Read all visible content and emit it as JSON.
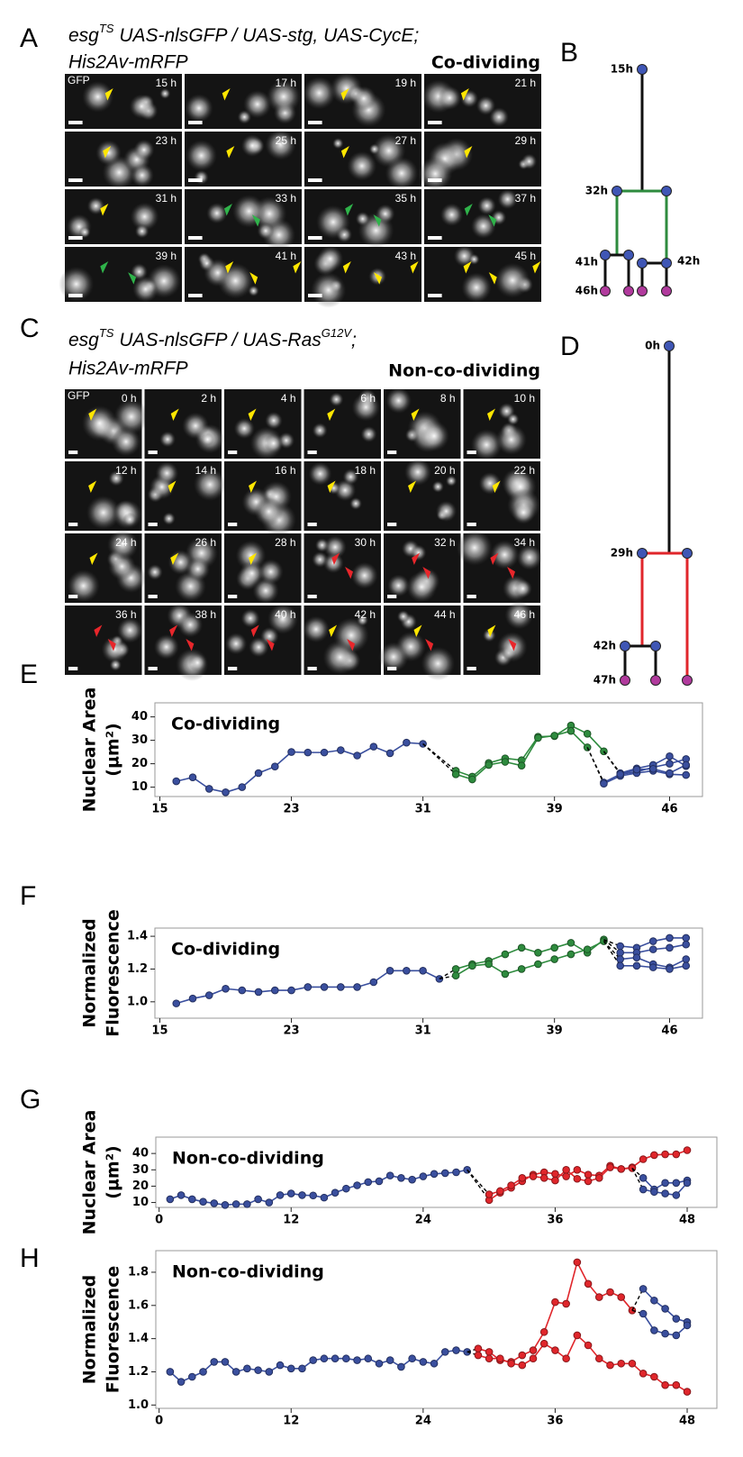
{
  "panel_labels": {
    "a": "A",
    "b": "B",
    "c": "C",
    "d": "D",
    "e": "E",
    "f": "F",
    "g": "G",
    "h": "H"
  },
  "panel_a": {
    "genotype": [
      "esg",
      "TS",
      " UAS-nlsGFP / UAS-stg, UAS-CycE;"
    ],
    "genotype_line2": "His2Av-mRFP",
    "condition": "Co-dividing",
    "channel": "GFP",
    "times": [
      "15 h",
      "17 h",
      "19 h",
      "21 h",
      "23 h",
      "25 h",
      "27 h",
      "29 h",
      "31 h",
      "33 h",
      "35 h",
      "37 h",
      "39 h",
      "41 h",
      "43 h",
      "45 h"
    ]
  },
  "panel_b": {
    "labels": {
      "root": "15h",
      "split": "32h",
      "left": "41h",
      "right": "42h",
      "end": "46h"
    }
  },
  "panel_c": {
    "genotype": [
      "esg",
      "TS",
      " UAS-nlsGFP / UAS-Ras",
      "G12V",
      ";"
    ],
    "genotype_line2": "His2Av-mRFP",
    "condition": "Non-co-dividing",
    "channel": "GFP",
    "times": [
      "0 h",
      "2 h",
      "4 h",
      "6 h",
      "8 h",
      "10 h",
      "12 h",
      "14 h",
      "16 h",
      "18 h",
      "20 h",
      "22 h",
      "24 h",
      "26 h",
      "28 h",
      "30 h",
      "32 h",
      "34 h",
      "36 h",
      "38 h",
      "40 h",
      "42 h",
      "44 h",
      "46 h"
    ]
  },
  "panel_d": {
    "labels": {
      "root": "0h",
      "split": "29h",
      "left": "42h",
      "end": "47h"
    }
  },
  "chart_data": [
    {
      "type": "line",
      "title": "Co-dividing",
      "y_label": [
        "Nuclear Area",
        "(µm²)"
      ],
      "xlim": [
        14.7,
        48
      ],
      "xticks": [
        15,
        23,
        31,
        39,
        46
      ],
      "ylim": [
        6,
        46
      ],
      "yticks": [
        10,
        20,
        30,
        40
      ],
      "series": [
        {
          "color": "#3a4f9e",
          "x": [
            16,
            17,
            18,
            19,
            20,
            21,
            22,
            23,
            24,
            25,
            26,
            27,
            28,
            29,
            30,
            31
          ],
          "values": [
            12.5,
            14.2,
            9.3,
            7.8,
            10,
            16,
            18.8,
            25,
            24.8,
            24.8,
            25.8,
            23.5,
            27.3,
            24.5,
            29,
            28.5
          ]
        },
        {
          "color": "#000000",
          "dashed": true,
          "x": [
            31,
            33
          ],
          "values": [
            28.5,
            17
          ]
        },
        {
          "color": "#000000",
          "dashed": true,
          "x": [
            31,
            33
          ],
          "values": [
            28.5,
            15.5
          ]
        },
        {
          "color": "#2e8b3e",
          "x": [
            33,
            34,
            35,
            36,
            37,
            38,
            39,
            40,
            41,
            42
          ],
          "values": [
            17,
            14.5,
            20.3,
            22.3,
            21.5,
            31.5,
            31.8,
            36.3,
            32.8,
            25.3
          ]
        },
        {
          "color": "#2e8b3e",
          "x": [
            33,
            34,
            35,
            36,
            37,
            38,
            39,
            40,
            41
          ],
          "values": [
            15.5,
            13.3,
            19.5,
            20.8,
            19.2,
            31,
            32,
            34,
            27
          ]
        },
        {
          "color": "#000000",
          "dashed": true,
          "x": [
            41,
            42
          ],
          "values": [
            27,
            12
          ]
        },
        {
          "color": "#000000",
          "dashed": true,
          "x": [
            41,
            42
          ],
          "values": [
            27,
            11.5
          ]
        },
        {
          "color": "#000000",
          "dashed": true,
          "x": [
            42,
            43
          ],
          "values": [
            25.3,
            16
          ]
        },
        {
          "color": "#000000",
          "dashed": true,
          "x": [
            42,
            43
          ],
          "values": [
            25.3,
            15.5
          ]
        },
        {
          "color": "#3a4f9e",
          "x": [
            42,
            43,
            44,
            45,
            46,
            47
          ],
          "values": [
            12,
            15.5,
            16.5,
            18.5,
            20,
            22
          ]
        },
        {
          "color": "#3a4f9e",
          "x": [
            42,
            43,
            44,
            45,
            46,
            47
          ],
          "values": [
            11.5,
            14.8,
            16,
            17,
            15.5,
            15.2
          ]
        },
        {
          "color": "#3a4f9e",
          "x": [
            43,
            44,
            45,
            46,
            47
          ],
          "values": [
            16,
            18,
            19.5,
            23.2,
            19
          ]
        },
        {
          "color": "#3a4f9e",
          "x": [
            43,
            44,
            45,
            46,
            47
          ],
          "values": [
            15.5,
            17.5,
            17.8,
            16,
            19.5
          ]
        }
      ]
    },
    {
      "type": "line",
      "title": "Co-dividing",
      "y_label": [
        "Normalized",
        "Fluorescence"
      ],
      "xlim": [
        14.7,
        48
      ],
      "xticks": [
        15,
        23,
        31,
        39,
        46
      ],
      "ylim": [
        0.9,
        1.45
      ],
      "yticks": [
        {
          "value": 1.0,
          "label": "1.0"
        },
        {
          "value": 1.2,
          "label": "1.2"
        },
        {
          "value": 1.4,
          "label": "1.4"
        }
      ],
      "series": [
        {
          "color": "#3a4f9e",
          "x": [
            16,
            17,
            18,
            19,
            20,
            21,
            22,
            23,
            24,
            25,
            26,
            27,
            28,
            29,
            30,
            31,
            32
          ],
          "values": [
            0.99,
            1.02,
            1.04,
            1.08,
            1.07,
            1.06,
            1.07,
            1.07,
            1.09,
            1.09,
            1.09,
            1.09,
            1.12,
            1.19,
            1.19,
            1.19,
            1.14
          ]
        },
        {
          "color": "#000000",
          "dashed": true,
          "x": [
            32,
            33
          ],
          "values": [
            1.14,
            1.2
          ]
        },
        {
          "color": "#000000",
          "dashed": true,
          "x": [
            32,
            33
          ],
          "values": [
            1.14,
            1.16
          ]
        },
        {
          "color": "#2e8b3e",
          "x": [
            33,
            34,
            35,
            36,
            37,
            38,
            39,
            40,
            41,
            42
          ],
          "values": [
            1.2,
            1.23,
            1.25,
            1.29,
            1.33,
            1.3,
            1.33,
            1.36,
            1.3,
            1.38
          ]
        },
        {
          "color": "#2e8b3e",
          "x": [
            33,
            34,
            35,
            36,
            37,
            38,
            39,
            40,
            41,
            42
          ],
          "values": [
            1.16,
            1.22,
            1.23,
            1.17,
            1.2,
            1.23,
            1.26,
            1.29,
            1.32,
            1.37
          ]
        },
        {
          "color": "#000000",
          "dashed": true,
          "x": [
            42,
            43
          ],
          "values": [
            1.38,
            1.34
          ]
        },
        {
          "color": "#000000",
          "dashed": true,
          "x": [
            42,
            43
          ],
          "values": [
            1.38,
            1.3
          ]
        },
        {
          "color": "#000000",
          "dashed": true,
          "x": [
            42,
            43
          ],
          "values": [
            1.37,
            1.26
          ]
        },
        {
          "color": "#000000",
          "dashed": true,
          "x": [
            42,
            43
          ],
          "values": [
            1.37,
            1.22
          ]
        },
        {
          "color": "#3a4f9e",
          "x": [
            43,
            44,
            45,
            46,
            47
          ],
          "values": [
            1.34,
            1.33,
            1.37,
            1.39,
            1.39
          ]
        },
        {
          "color": "#3a4f9e",
          "x": [
            43,
            44,
            45,
            46,
            47
          ],
          "values": [
            1.3,
            1.3,
            1.32,
            1.33,
            1.35
          ]
        },
        {
          "color": "#3a4f9e",
          "x": [
            43,
            44,
            45,
            46,
            47
          ],
          "values": [
            1.26,
            1.27,
            1.23,
            1.21,
            1.26
          ]
        },
        {
          "color": "#3a4f9e",
          "x": [
            43,
            44,
            45,
            46,
            47
          ],
          "values": [
            1.22,
            1.22,
            1.21,
            1.2,
            1.22
          ]
        }
      ]
    },
    {
      "type": "line",
      "title": "Non-co-dividing",
      "y_label": [
        "Nuclear Area",
        "(µm²)"
      ],
      "xlim": [
        -0.3,
        50.7
      ],
      "xticks": [
        0,
        12,
        24,
        36,
        48
      ],
      "ylim": [
        7,
        50
      ],
      "yticks": [
        10,
        20,
        30,
        40
      ],
      "series": [
        {
          "color": "#3a4f9e",
          "x": [
            1,
            2,
            3,
            4,
            5,
            6,
            7,
            8,
            9,
            10,
            11,
            12,
            13,
            14,
            15,
            16,
            17,
            18,
            19,
            20,
            21,
            22,
            23,
            24,
            25,
            26,
            27,
            28
          ],
          "values": [
            12,
            14.5,
            12,
            10.5,
            9.5,
            8.5,
            9,
            9,
            12,
            10,
            14.5,
            15.5,
            14.5,
            14.3,
            13,
            16,
            18.5,
            20.5,
            22.5,
            23,
            26.5,
            25,
            24,
            26,
            27.5,
            28,
            28.5,
            30
          ]
        },
        {
          "color": "#000000",
          "dashed": true,
          "x": [
            28,
            30
          ],
          "values": [
            30,
            11.5
          ]
        },
        {
          "color": "#000000",
          "dashed": true,
          "x": [
            28,
            30
          ],
          "values": [
            30,
            15
          ]
        },
        {
          "color": "#e0262b",
          "x": [
            30,
            31,
            32,
            33,
            34,
            35,
            36,
            37,
            38,
            39,
            40,
            41,
            42,
            43,
            44,
            45,
            46,
            47,
            48
          ],
          "values": [
            11.5,
            16,
            19,
            23,
            27,
            28.5,
            27.5,
            26,
            30,
            27,
            26.5,
            32.5,
            30.5,
            31.5,
            36.5,
            39,
            39.5,
            39.5,
            42
          ]
        },
        {
          "color": "#e0262b",
          "x": [
            30,
            31,
            32,
            33,
            34,
            35,
            36,
            37,
            38,
            39,
            40,
            41,
            42,
            43
          ],
          "values": [
            15,
            17,
            20.5,
            25,
            26,
            25,
            23.5,
            30,
            24.5,
            23,
            25,
            31.5,
            30.5,
            31
          ]
        },
        {
          "color": "#000000",
          "dashed": true,
          "x": [
            43,
            44
          ],
          "values": [
            31,
            25
          ]
        },
        {
          "color": "#000000",
          "dashed": true,
          "x": [
            43,
            44
          ],
          "values": [
            31,
            18
          ]
        },
        {
          "color": "#3a4f9e",
          "x": [
            44,
            45,
            46,
            47,
            48
          ],
          "values": [
            25,
            18,
            22,
            22,
            23.5
          ]
        },
        {
          "color": "#3a4f9e",
          "x": [
            44,
            45,
            46,
            47,
            48
          ],
          "values": [
            18,
            16.5,
            15.5,
            14.5,
            22
          ]
        }
      ]
    },
    {
      "type": "line",
      "title": "Non-co-dividing",
      "y_label": [
        "Normalized",
        "Fluorescence"
      ],
      "xlim": [
        -0.3,
        50.7
      ],
      "xticks": [
        0,
        12,
        24,
        36,
        48
      ],
      "ylim": [
        0.98,
        1.93
      ],
      "yticks": [
        {
          "value": 1.0,
          "label": "1.0"
        },
        {
          "value": 1.2,
          "label": "1.2"
        },
        {
          "value": 1.4,
          "label": "1.4"
        },
        {
          "value": 1.6,
          "label": "1.6"
        },
        {
          "value": 1.8,
          "label": "1.8"
        }
      ],
      "series": [
        {
          "color": "#3a4f9e",
          "x": [
            1,
            2,
            3,
            4,
            5,
            6,
            7,
            8,
            9,
            10,
            11,
            12,
            13,
            14,
            15,
            16,
            17,
            18,
            19,
            20,
            21,
            22,
            23,
            24,
            25,
            26,
            27,
            28
          ],
          "values": [
            1.2,
            1.14,
            1.17,
            1.2,
            1.26,
            1.26,
            1.2,
            1.22,
            1.21,
            1.2,
            1.24,
            1.22,
            1.22,
            1.27,
            1.28,
            1.28,
            1.28,
            1.27,
            1.28,
            1.25,
            1.27,
            1.23,
            1.28,
            1.26,
            1.25,
            1.32,
            1.33,
            1.32
          ]
        },
        {
          "color": "#000000",
          "dashed": true,
          "x": [
            28,
            29
          ],
          "values": [
            1.32,
            1.34
          ]
        },
        {
          "color": "#000000",
          "dashed": true,
          "x": [
            28,
            29
          ],
          "values": [
            1.32,
            1.3
          ]
        },
        {
          "color": "#e0262b",
          "x": [
            29,
            30,
            31,
            32,
            33,
            34,
            35,
            36,
            37,
            38,
            39,
            40,
            41,
            42,
            43
          ],
          "values": [
            1.34,
            1.32,
            1.27,
            1.26,
            1.3,
            1.33,
            1.44,
            1.62,
            1.61,
            1.86,
            1.73,
            1.65,
            1.68,
            1.65,
            1.57
          ]
        },
        {
          "color": "#e0262b",
          "x": [
            29,
            30,
            31,
            32,
            33,
            34,
            35,
            36,
            37,
            38,
            39,
            40,
            41,
            42,
            43,
            44,
            45,
            46,
            47,
            48
          ],
          "values": [
            1.3,
            1.28,
            1.28,
            1.25,
            1.24,
            1.28,
            1.37,
            1.33,
            1.28,
            1.42,
            1.36,
            1.28,
            1.24,
            1.25,
            1.25,
            1.19,
            1.17,
            1.12,
            1.12,
            1.08
          ]
        },
        {
          "color": "#000000",
          "dashed": true,
          "x": [
            43,
            44
          ],
          "values": [
            1.57,
            1.7
          ]
        },
        {
          "color": "#000000",
          "dashed": true,
          "x": [
            43,
            44
          ],
          "values": [
            1.57,
            1.55
          ]
        },
        {
          "color": "#3a4f9e",
          "x": [
            44,
            45,
            46,
            47,
            48
          ],
          "values": [
            1.7,
            1.63,
            1.58,
            1.52,
            1.5
          ]
        },
        {
          "color": "#3a4f9e",
          "x": [
            44,
            45,
            46,
            47,
            48
          ],
          "values": [
            1.55,
            1.45,
            1.43,
            1.42,
            1.48
          ]
        }
      ]
    }
  ]
}
